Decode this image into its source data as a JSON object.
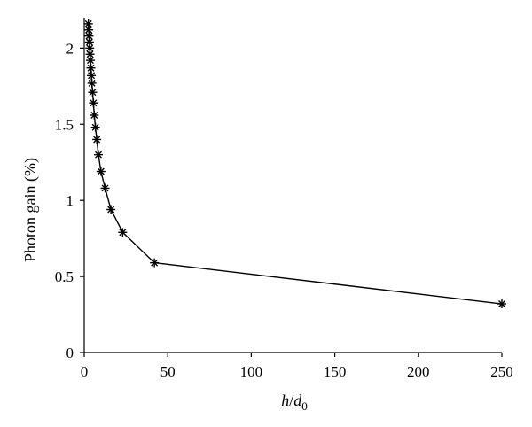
{
  "chart_data": {
    "type": "line",
    "title": "",
    "xlabel": {
      "main": "h",
      "sep": "/",
      "sym": "d",
      "sub": "0"
    },
    "ylabel": "Photon gain (%)",
    "xlim": [
      0,
      250
    ],
    "ylim": [
      0,
      2.2
    ],
    "xticks": [
      0,
      50,
      100,
      150,
      200,
      250
    ],
    "yticks": [
      0,
      0.5,
      1,
      1.5,
      2
    ],
    "grid": false,
    "series": [
      {
        "marker": "asterisk",
        "color": "#000000",
        "points": [
          {
            "x": 2.5,
            "y": 2.16
          },
          {
            "x": 2.7,
            "y": 2.12
          },
          {
            "x": 2.9,
            "y": 2.08
          },
          {
            "x": 3.1,
            "y": 2.04
          },
          {
            "x": 3.3,
            "y": 2.0
          },
          {
            "x": 3.5,
            "y": 1.96
          },
          {
            "x": 3.7,
            "y": 1.92
          },
          {
            "x": 4.0,
            "y": 1.87
          },
          {
            "x": 4.3,
            "y": 1.82
          },
          {
            "x": 4.6,
            "y": 1.77
          },
          {
            "x": 5.0,
            "y": 1.71
          },
          {
            "x": 5.5,
            "y": 1.64
          },
          {
            "x": 6.0,
            "y": 1.56
          },
          {
            "x": 6.7,
            "y": 1.48
          },
          {
            "x": 7.5,
            "y": 1.4
          },
          {
            "x": 8.5,
            "y": 1.3
          },
          {
            "x": 10,
            "y": 1.19
          },
          {
            "x": 12.5,
            "y": 1.08
          },
          {
            "x": 16,
            "y": 0.94
          },
          {
            "x": 23,
            "y": 0.79
          },
          {
            "x": 42,
            "y": 0.59
          },
          {
            "x": 250,
            "y": 0.32
          }
        ]
      }
    ]
  }
}
